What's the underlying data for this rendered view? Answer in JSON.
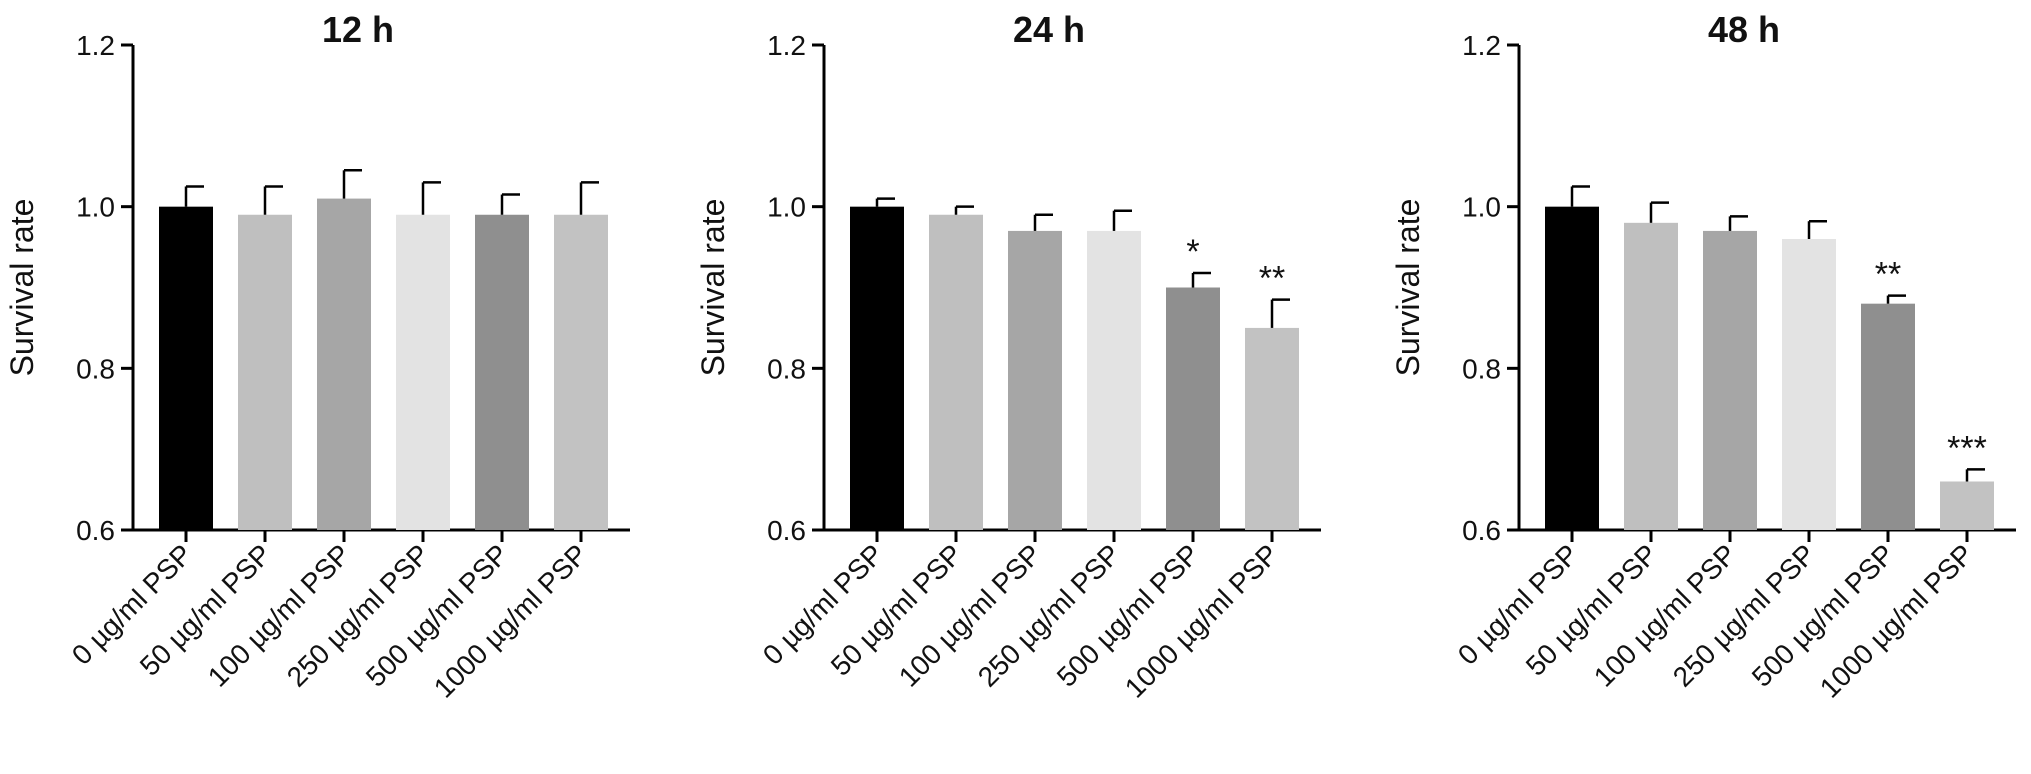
{
  "chart_data": [
    {
      "type": "bar",
      "title": "12 h",
      "ylabel": "Survival rate",
      "ylim": [
        0.6,
        1.2
      ],
      "yticks": [
        "0.6",
        "0.8",
        "1.0",
        "1.2"
      ],
      "categories": [
        "0 µg/ml PSP",
        "50 µg/ml PSP",
        "100 µg/ml PSP",
        "250 µg/ml PSP",
        "500 µg/ml PSP",
        "1000 µg/ml PSP"
      ],
      "values": [
        1.0,
        0.99,
        1.01,
        0.99,
        0.99,
        0.99
      ],
      "errors": [
        0.025,
        0.035,
        0.035,
        0.04,
        0.025,
        0.04
      ],
      "significance": [
        "",
        "",
        "",
        "",
        "",
        ""
      ],
      "colors": [
        "#000000",
        "#bfbfbf",
        "#a6a6a6",
        "#e3e3e3",
        "#8f8f8f",
        "#c2c2c2"
      ]
    },
    {
      "type": "bar",
      "title": "24 h",
      "ylabel": "Survival rate",
      "ylim": [
        0.6,
        1.2
      ],
      "yticks": [
        "0.6",
        "0.8",
        "1.0",
        "1.2"
      ],
      "categories": [
        "0 µg/ml PSP",
        "50 µg/ml PSP",
        "100 µg/ml PSP",
        "250 µg/ml PSP",
        "500 µg/ml PSP",
        "1000 µg/ml PSP"
      ],
      "values": [
        1.0,
        0.99,
        0.97,
        0.97,
        0.9,
        0.85
      ],
      "errors": [
        0.01,
        0.01,
        0.02,
        0.025,
        0.018,
        0.035
      ],
      "significance": [
        "",
        "",
        "",
        "",
        "*",
        "**"
      ],
      "colors": [
        "#000000",
        "#bfbfbf",
        "#a6a6a6",
        "#e3e3e3",
        "#8f8f8f",
        "#c2c2c2"
      ]
    },
    {
      "type": "bar",
      "title": "48 h",
      "ylabel": "Survival rate",
      "ylim": [
        0.6,
        1.2
      ],
      "yticks": [
        "0.6",
        "0.8",
        "1.0",
        "1.2"
      ],
      "categories": [
        "0 µg/ml PSP",
        "50 µg/ml PSP",
        "100 µg/ml PSP",
        "250 µg/ml PSP",
        "500 µg/ml PSP",
        "1000 µg/ml PSP"
      ],
      "values": [
        1.0,
        0.98,
        0.97,
        0.96,
        0.88,
        0.66
      ],
      "errors": [
        0.025,
        0.025,
        0.018,
        0.022,
        0.01,
        0.015
      ],
      "significance": [
        "",
        "",
        "",
        "",
        "**",
        "***"
      ],
      "colors": [
        "#000000",
        "#bfbfbf",
        "#a6a6a6",
        "#e3e3e3",
        "#8f8f8f",
        "#c2c2c2"
      ]
    }
  ]
}
